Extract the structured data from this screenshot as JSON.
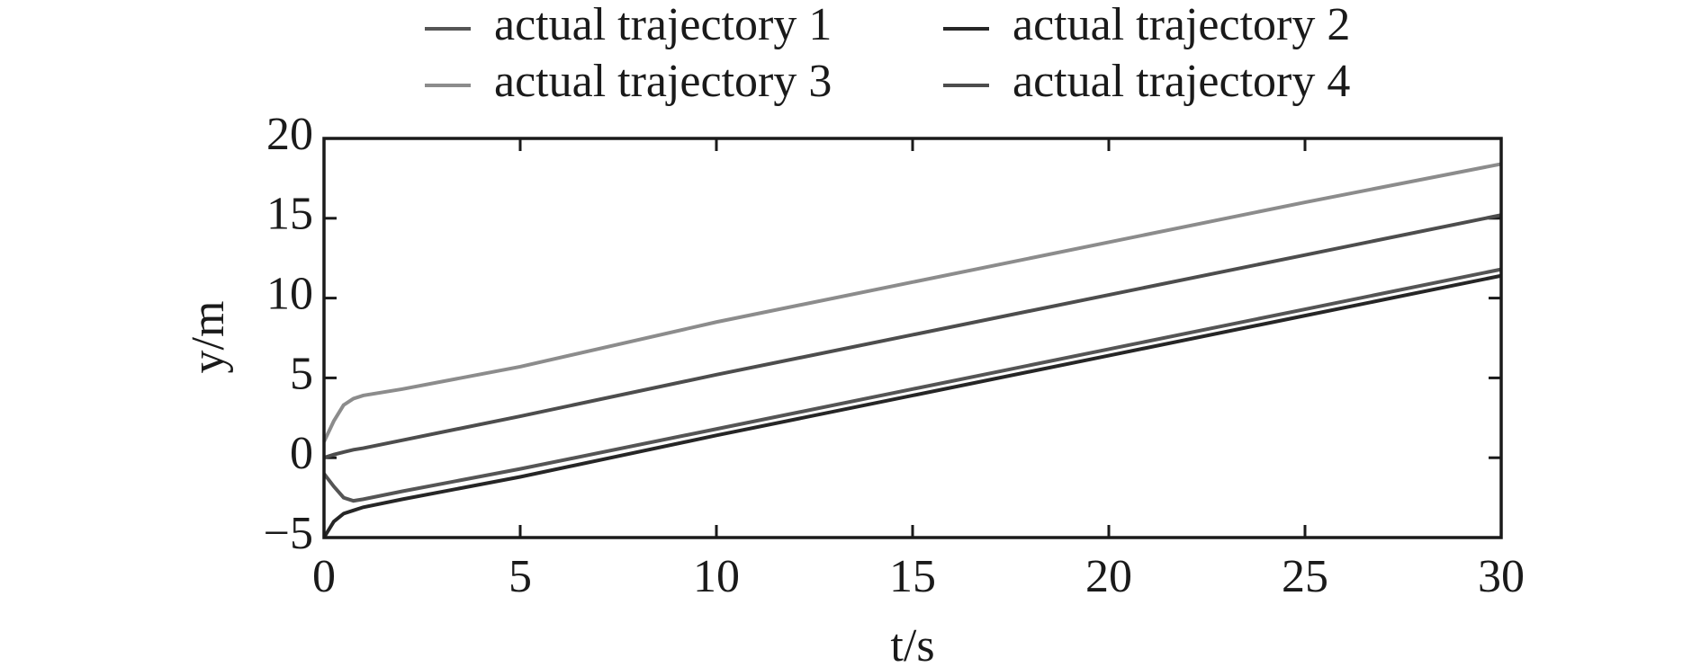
{
  "chart_data": {
    "type": "line",
    "x_label": "t/s",
    "y_label": "y/m",
    "x": [
      0,
      0.25,
      0.5,
      0.75,
      1,
      2,
      5,
      10,
      15,
      20,
      25,
      30
    ],
    "series": [
      {
        "name": "actual trajectory 1",
        "color": "#555555",
        "values": [
          -1,
          -1.8,
          -2.5,
          -2.7,
          -2.6,
          -2.1,
          -0.7,
          1.8,
          4.3,
          6.8,
          9.3,
          11.8
        ]
      },
      {
        "name": "actual trajectory 2",
        "color": "#262626",
        "values": [
          -5,
          -4.0,
          -3.5,
          -3.3,
          -3.1,
          -2.6,
          -1.2,
          1.4,
          3.9,
          6.4,
          8.9,
          11.4
        ]
      },
      {
        "name": "actual trajectory 3",
        "color": "#8c8c8c",
        "values": [
          1,
          2.3,
          3.3,
          3.7,
          3.9,
          4.3,
          5.7,
          8.5,
          11.0,
          13.5,
          16.0,
          18.4
        ]
      },
      {
        "name": "actual trajectory 4",
        "color": "#4d4d4d",
        "values": [
          0,
          0.2,
          0.35,
          0.5,
          0.6,
          1.1,
          2.6,
          5.2,
          7.7,
          10.2,
          12.7,
          15.2
        ]
      }
    ],
    "xlim": [
      0,
      30
    ],
    "xticks": [
      0,
      5,
      10,
      15,
      20,
      25,
      30
    ],
    "ylim": [
      -5,
      20
    ],
    "yticks": [
      {
        "value": -5,
        "label": "−5"
      },
      0,
      5,
      10,
      15,
      20
    ],
    "legend": "top"
  }
}
